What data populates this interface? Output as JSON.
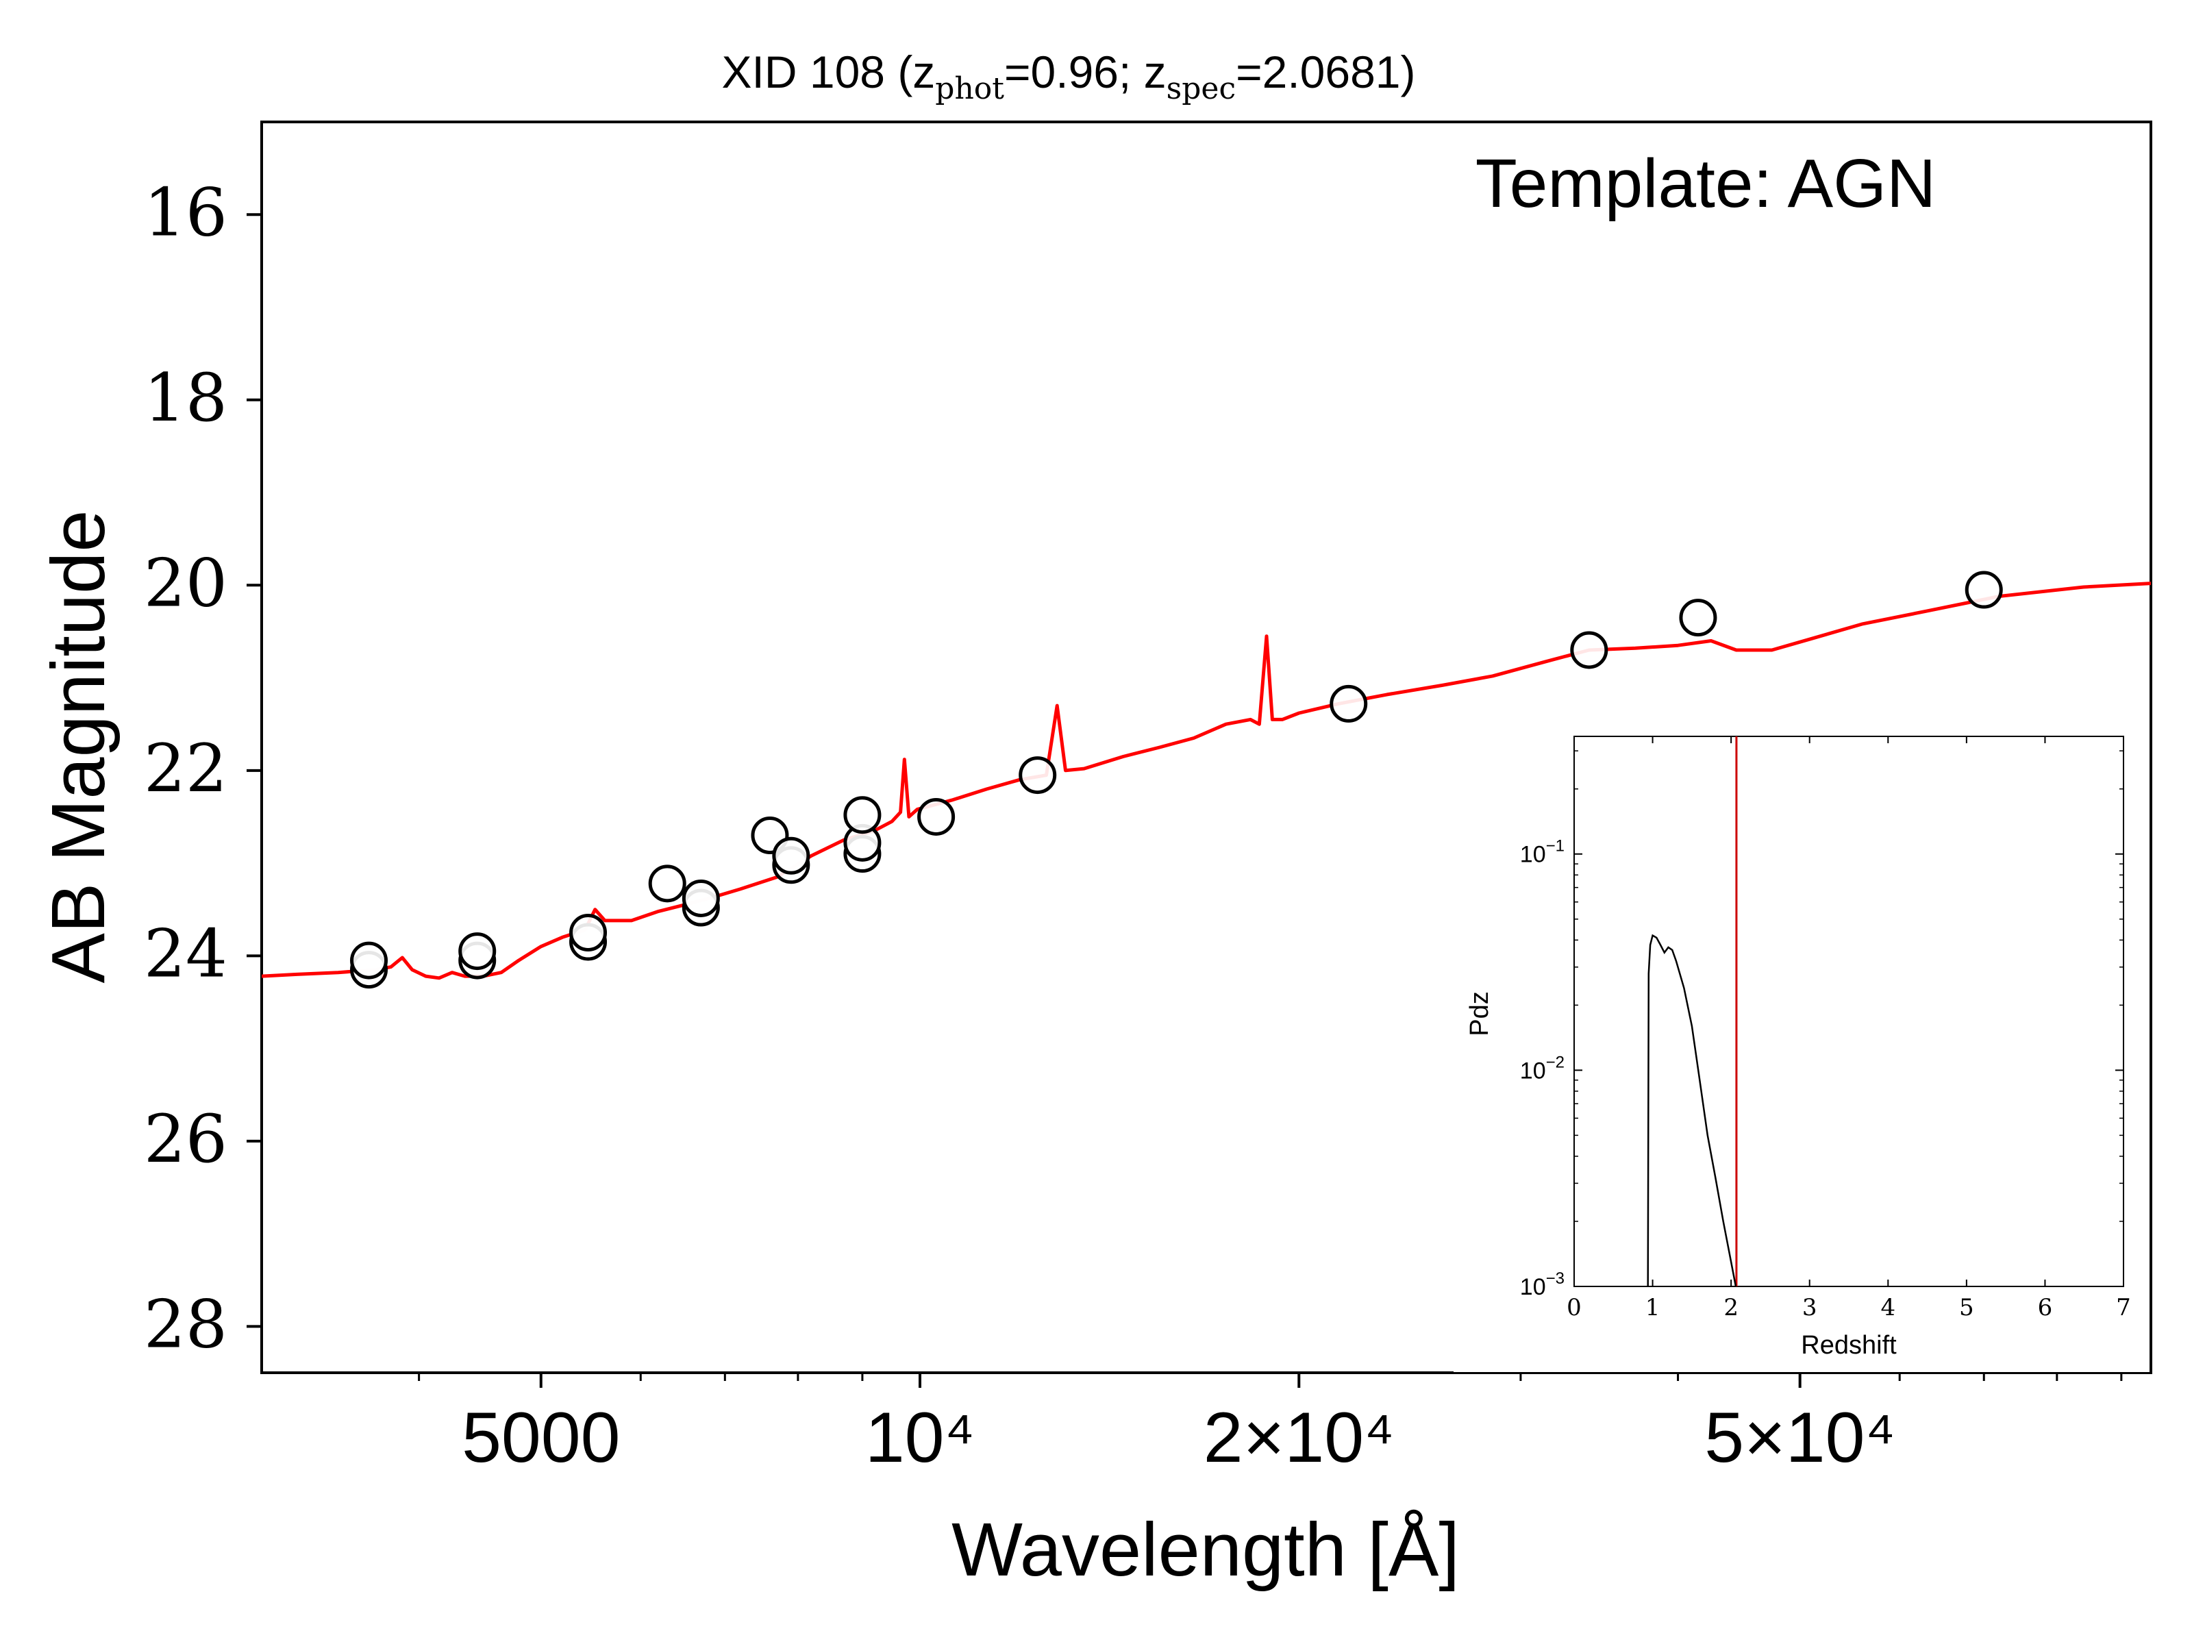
{
  "chart_data": [
    {
      "type": "scatter",
      "title_prefix": "XID 108 (z",
      "title_sub1": "phot",
      "title_mid": "=0.96; z",
      "title_sub2": "spec",
      "title_suffix": "=2.0681)",
      "annotation": "Template: AGN",
      "xlabel": "Wavelength [Å]",
      "ylabel": "AB Magnitude",
      "x_scale": "log",
      "xlim": [
        3000,
        95000
      ],
      "ylim": [
        28.5,
        15.0
      ],
      "y_inverted": true,
      "yticks": [
        "16",
        "18",
        "20",
        "22",
        "24",
        "26",
        "28"
      ],
      "xticks": [
        {
          "value": 5000,
          "label": "5000"
        },
        {
          "value": 10000,
          "label": "10⁴"
        },
        {
          "value": 20000,
          "label": "2×10⁴"
        },
        {
          "value": 50000,
          "label": "5×10⁴"
        }
      ],
      "grid": false,
      "series": [
        {
          "kind": "points",
          "marker": "open-circle",
          "points": [
            [
              3650,
              24.15
            ],
            [
              3650,
              24.05
            ],
            [
              4450,
              24.05
            ],
            [
              4450,
              23.95
            ],
            [
              5450,
              23.85
            ],
            [
              5450,
              23.75
            ],
            [
              6300,
              23.22
            ],
            [
              6700,
              23.48
            ],
            [
              6700,
              23.38
            ],
            [
              7600,
              22.7
            ],
            [
              7900,
              23.02
            ],
            [
              7900,
              22.92
            ],
            [
              9000,
              22.9
            ],
            [
              9000,
              22.78
            ],
            [
              9000,
              22.48
            ],
            [
              10300,
              22.5
            ],
            [
              12400,
              22.05
            ],
            [
              21900,
              21.28
            ],
            [
              34000,
              20.7
            ],
            [
              41500,
              20.35
            ],
            [
              70000,
              20.05
            ]
          ]
        },
        {
          "kind": "line",
          "color": "#ff0000",
          "points": [
            [
              3000,
              24.22
            ],
            [
              3200,
              24.2
            ],
            [
              3450,
              24.18
            ],
            [
              3700,
              24.15
            ],
            [
              3800,
              24.12
            ],
            [
              3880,
              24.02
            ],
            [
              3950,
              24.15
            ],
            [
              4050,
              24.22
            ],
            [
              4150,
              24.24
            ],
            [
              4250,
              24.18
            ],
            [
              4350,
              24.22
            ],
            [
              4500,
              24.22
            ],
            [
              4650,
              24.18
            ],
            [
              4800,
              24.05
            ],
            [
              5000,
              23.9
            ],
            [
              5200,
              23.8
            ],
            [
              5420,
              23.72
            ],
            [
              5520,
              23.5
            ],
            [
              5620,
              23.62
            ],
            [
              5900,
              23.62
            ],
            [
              6200,
              23.52
            ],
            [
              6500,
              23.45
            ],
            [
              6800,
              23.38
            ],
            [
              7200,
              23.28
            ],
            [
              7700,
              23.15
            ],
            [
              8200,
              22.92
            ],
            [
              8700,
              22.75
            ],
            [
              9200,
              22.65
            ],
            [
              9500,
              22.55
            ],
            [
              9650,
              22.45
            ],
            [
              9720,
              21.88
            ],
            [
              9800,
              22.5
            ],
            [
              9950,
              22.42
            ],
            [
              10600,
              22.32
            ],
            [
              11300,
              22.2
            ],
            [
              12000,
              22.1
            ],
            [
              12600,
              22.05
            ],
            [
              12850,
              21.3
            ],
            [
              13050,
              22.0
            ],
            [
              13500,
              21.98
            ],
            [
              14500,
              21.85
            ],
            [
              15500,
              21.75
            ],
            [
              16500,
              21.65
            ],
            [
              17500,
              21.5
            ],
            [
              18300,
              21.45
            ],
            [
              18600,
              21.5
            ],
            [
              18850,
              20.55
            ],
            [
              19050,
              21.45
            ],
            [
              19400,
              21.45
            ],
            [
              20000,
              21.38
            ],
            [
              21500,
              21.28
            ],
            [
              23500,
              21.18
            ],
            [
              26000,
              21.08
            ],
            [
              28500,
              20.98
            ],
            [
              31500,
              20.82
            ],
            [
              34000,
              20.7
            ],
            [
              37000,
              20.68
            ],
            [
              40000,
              20.65
            ],
            [
              42500,
              20.6
            ],
            [
              44500,
              20.7
            ],
            [
              47500,
              20.7
            ],
            [
              51000,
              20.58
            ],
            [
              56000,
              20.42
            ],
            [
              63000,
              20.28
            ],
            [
              72000,
              20.12
            ],
            [
              84000,
              20.02
            ],
            [
              95000,
              19.98
            ]
          ]
        }
      ]
    },
    {
      "type": "line",
      "xlabel": "Redshift",
      "ylabel": "Pdz",
      "x_scale": "linear",
      "y_scale": "log",
      "xlim": [
        0,
        7
      ],
      "ylim": [
        0.001,
        0.35
      ],
      "xticks": [
        "0",
        "1",
        "2",
        "3",
        "4",
        "5",
        "6",
        "7"
      ],
      "yticks": [
        {
          "value": 0.1,
          "base": "10",
          "exp": "−1"
        },
        {
          "value": 0.01,
          "base": "10",
          "exp": "−2"
        },
        {
          "value": 0.001,
          "base": "10",
          "exp": "−3"
        }
      ],
      "zspec_line": {
        "value": 2.0681,
        "color": "#ff0000"
      },
      "series": [
        {
          "kind": "line",
          "color": "#000000",
          "points": [
            [
              0.94,
              0.001
            ],
            [
              0.95,
              0.028
            ],
            [
              0.97,
              0.038
            ],
            [
              1.0,
              0.042
            ],
            [
              1.05,
              0.041
            ],
            [
              1.1,
              0.038
            ],
            [
              1.15,
              0.035
            ],
            [
              1.2,
              0.037
            ],
            [
              1.25,
              0.036
            ],
            [
              1.3,
              0.032
            ],
            [
              1.4,
              0.024
            ],
            [
              1.5,
              0.016
            ],
            [
              1.6,
              0.009
            ],
            [
              1.7,
              0.005
            ],
            [
              1.8,
              0.0032
            ],
            [
              1.9,
              0.002
            ],
            [
              2.0,
              0.0013
            ],
            [
              2.06,
              0.001
            ]
          ]
        }
      ]
    }
  ]
}
